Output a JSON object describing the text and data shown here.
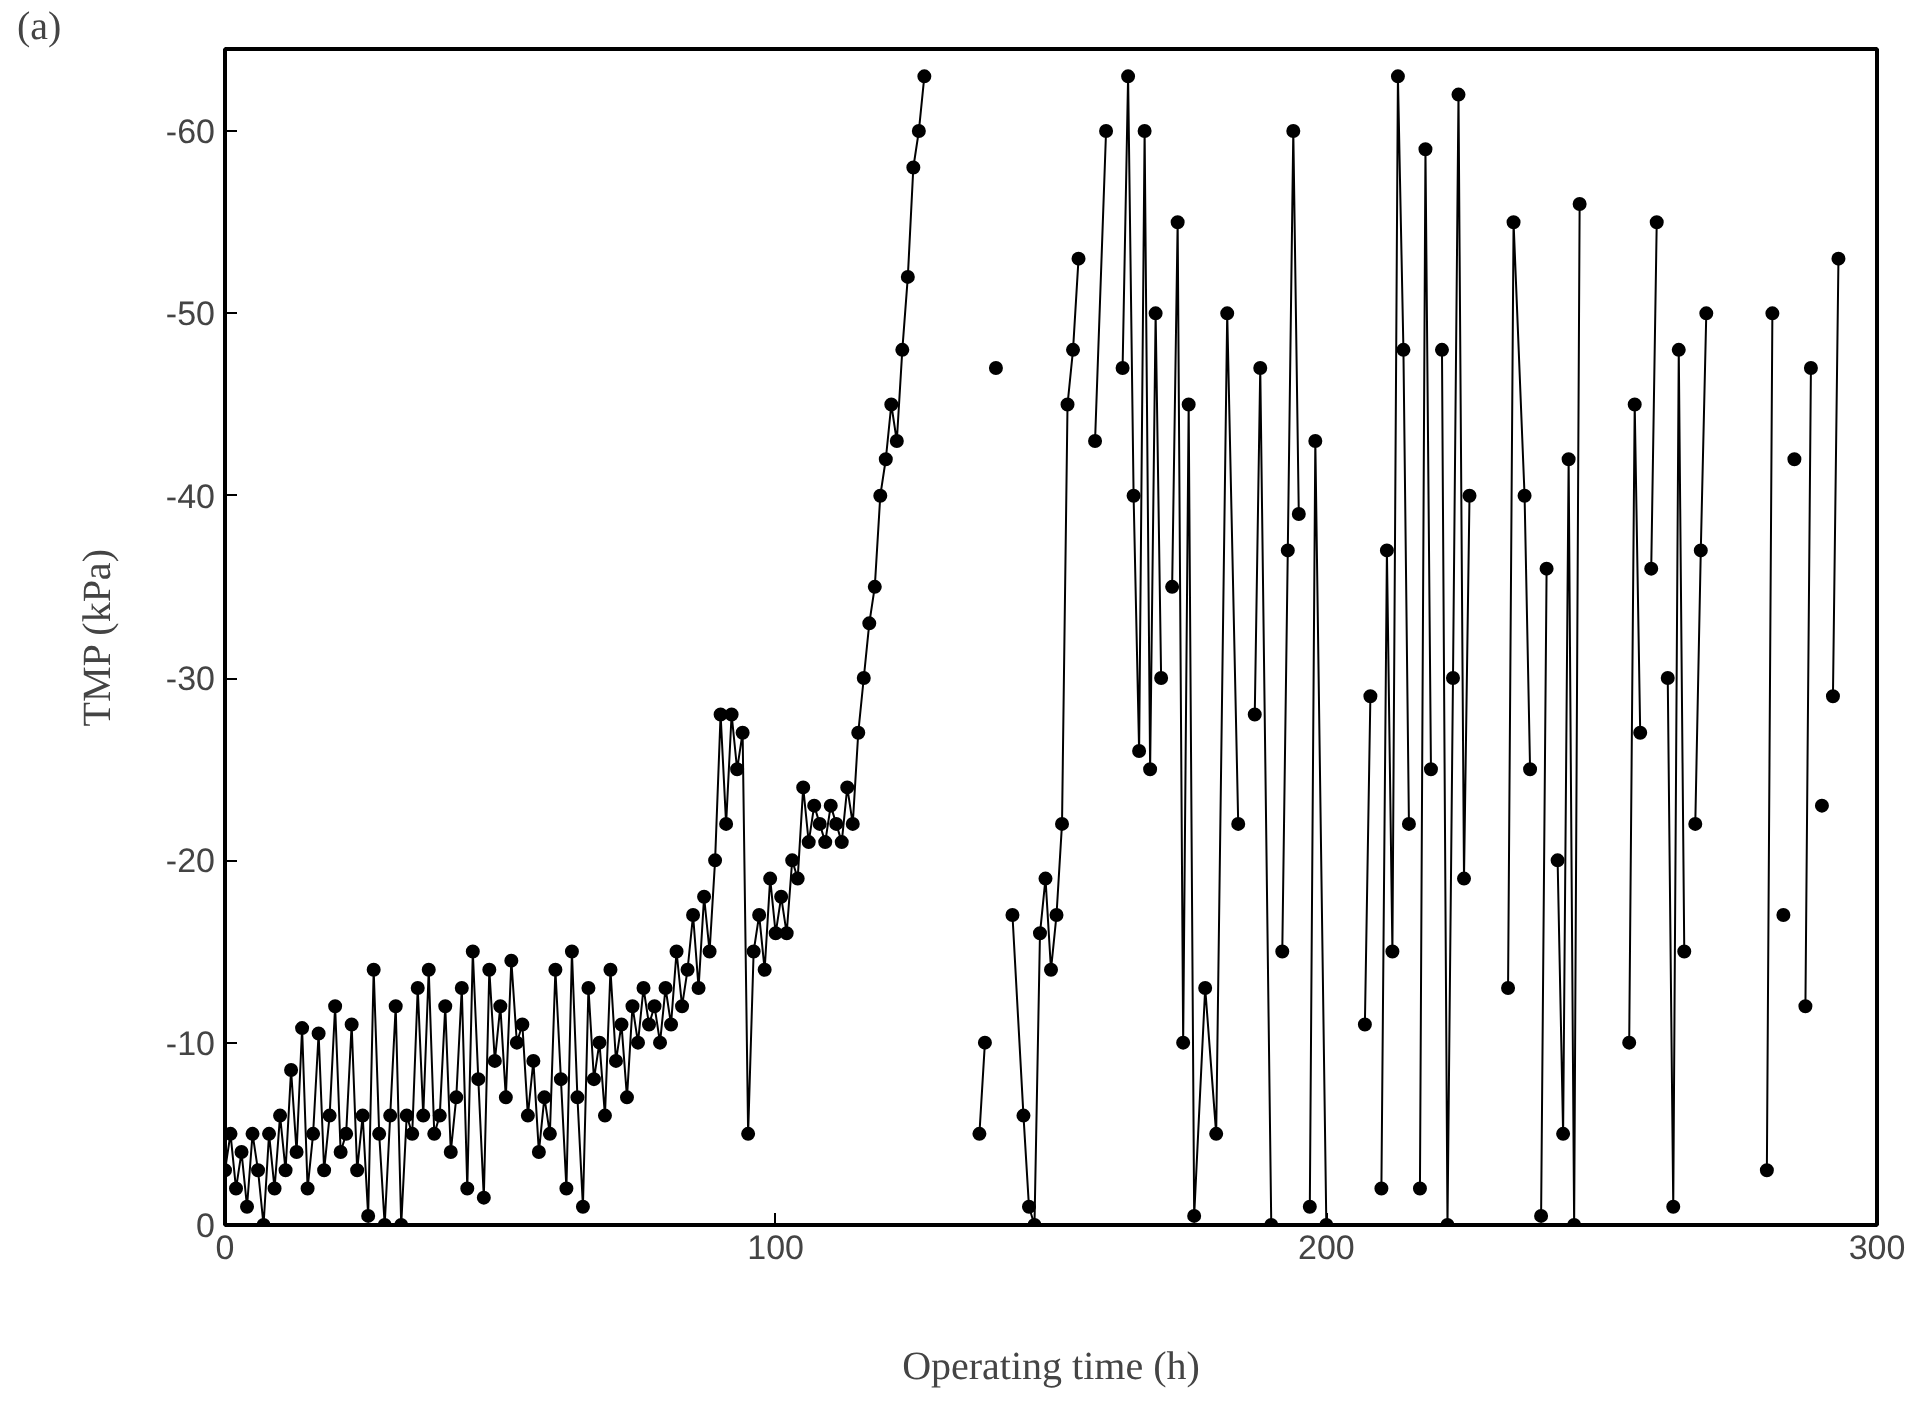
{
  "chart_data": {
    "type": "line",
    "xlabel": "Operating time (h)",
    "ylabel": "TMP (kPa)",
    "annotations": [
      "(a)"
    ],
    "xlim": [
      0,
      300
    ],
    "xticks": [
      0,
      100,
      200,
      300
    ],
    "ylim": [
      0,
      -64.5
    ],
    "yticks": [
      0,
      -10,
      -20,
      -30,
      -40,
      -50,
      -60
    ],
    "grid": false,
    "marker": "circle",
    "line_style": "solid",
    "series": [
      {
        "color": "#000000",
        "x": [
          0,
          1,
          2,
          3,
          4,
          5,
          6,
          7,
          8,
          9,
          10,
          11,
          12,
          13,
          14,
          15,
          16,
          17,
          18,
          19,
          20,
          21,
          22,
          23,
          24,
          25,
          26,
          27,
          28,
          29,
          30,
          31,
          32,
          33,
          34,
          35,
          36,
          37,
          38,
          39,
          40,
          41,
          42,
          43,
          44,
          45,
          46,
          47,
          48,
          49,
          50,
          51,
          52,
          53,
          54,
          55,
          56,
          57,
          58,
          59,
          60,
          61,
          62,
          63,
          64,
          65,
          66,
          67,
          68,
          69,
          70,
          71,
          72,
          73,
          74,
          75,
          76,
          77,
          78,
          79,
          80,
          81,
          82,
          83,
          84,
          85,
          86,
          87,
          88,
          89,
          90,
          91,
          92,
          93,
          94,
          95,
          96,
          97,
          98,
          99,
          100,
          101,
          102,
          103,
          104,
          105,
          106,
          107,
          108,
          109,
          110,
          111,
          112,
          113,
          114,
          115,
          116,
          117,
          118,
          119,
          120,
          121,
          122,
          123,
          124,
          125,
          126,
          127,
          128,
          137,
          138,
          139,
          140,
          141,
          143,
          145,
          146,
          147,
          148,
          149,
          150,
          151,
          152,
          153,
          154,
          155,
          156,
          158,
          160,
          161,
          163,
          164,
          165,
          166,
          167,
          168,
          169,
          170,
          171,
          172,
          173,
          174,
          175,
          176,
          178,
          180,
          182,
          184,
          185,
          187,
          188,
          190,
          191,
          192,
          193,
          194,
          195,
          196,
          197,
          198,
          200,
          201,
          207,
          208,
          209,
          210,
          211,
          212,
          213,
          214,
          215,
          216,
          217,
          218,
          219,
          220,
          221,
          222,
          223,
          224,
          225,
          226,
          227,
          233,
          234,
          236,
          237,
          238,
          239,
          240,
          241,
          242,
          243,
          244,
          245,
          246,
          247,
          255,
          256,
          257,
          258,
          259,
          260,
          261,
          262,
          263,
          264,
          265,
          266,
          267,
          268,
          269,
          270,
          280,
          281,
          282,
          283,
          284,
          285,
          286,
          287,
          288,
          289,
          290,
          291,
          292,
          293
        ],
        "values": [
          -3,
          -5,
          -2,
          -4,
          -1,
          -5,
          -3,
          0,
          -5,
          -2,
          -6,
          -3,
          -8.5,
          -4,
          -10.8,
          -2,
          -5,
          -10.5,
          -3,
          -6,
          -12,
          -4,
          -5,
          -11,
          -3,
          -6,
          -0.5,
          -14,
          -5,
          0,
          -6,
          -12,
          0,
          -6,
          -5,
          -13,
          -6,
          -14,
          -5,
          -6,
          -12,
          -4,
          -7,
          -13,
          -2,
          -15,
          -8,
          -1.5,
          -14,
          -9,
          -12,
          -7,
          -14.5,
          -10,
          -11,
          -6,
          -9,
          -4,
          -7,
          -5,
          -14,
          -8,
          -2,
          -15,
          -7,
          -1,
          -13,
          -8,
          -10,
          -6,
          -14,
          -9,
          -11,
          -7,
          -12,
          -10,
          -13,
          -11,
          -12,
          -10,
          -13,
          -11,
          -15,
          -12,
          -14,
          -17,
          -13,
          -18,
          -15,
          -20,
          -28,
          -22,
          -28,
          -25,
          -27,
          -5,
          -15,
          -17,
          -14,
          -19,
          -16,
          -18,
          -16,
          -20,
          -19,
          -24,
          -21,
          -23,
          -22,
          -21,
          -23,
          -22,
          -21,
          -24,
          -22,
          -27,
          -30,
          -33,
          -35,
          -40,
          -42,
          -45,
          -43,
          -48,
          -52,
          -58,
          -60,
          -63,
          null,
          -5,
          -10,
          null,
          -47,
          null,
          -17,
          -6,
          -1,
          0,
          -16,
          -19,
          -14,
          -17,
          -22,
          -45,
          -48,
          -53,
          null,
          -43,
          -60,
          null,
          -47,
          -63,
          -40,
          -26,
          -60,
          -25,
          -50,
          -30,
          null,
          -35,
          -55,
          -10,
          -45,
          -0.5,
          -13,
          -5,
          -50,
          -22,
          null,
          -28,
          -47,
          0,
          null,
          -15,
          -37,
          -60,
          -39,
          null,
          -1,
          -43,
          0,
          null,
          -11,
          -29,
          null,
          -2,
          -37,
          -15,
          -63,
          -48,
          -22,
          null,
          -2,
          -59,
          -25,
          null,
          -48,
          0,
          -30,
          -62,
          -19,
          -40,
          null,
          -13,
          -55,
          -40,
          -25,
          null,
          -0.5,
          -36,
          null,
          -20,
          -5,
          -42,
          0,
          -56,
          null,
          -10,
          -45,
          -27,
          null,
          -36,
          -55,
          null,
          -30,
          -1,
          -48,
          -15,
          null,
          -22,
          -37,
          -50,
          null,
          -3,
          -50,
          null,
          -17,
          null,
          -42,
          null,
          -12,
          -47,
          null,
          -23,
          null,
          -29,
          -53
        ]
      }
    ]
  }
}
